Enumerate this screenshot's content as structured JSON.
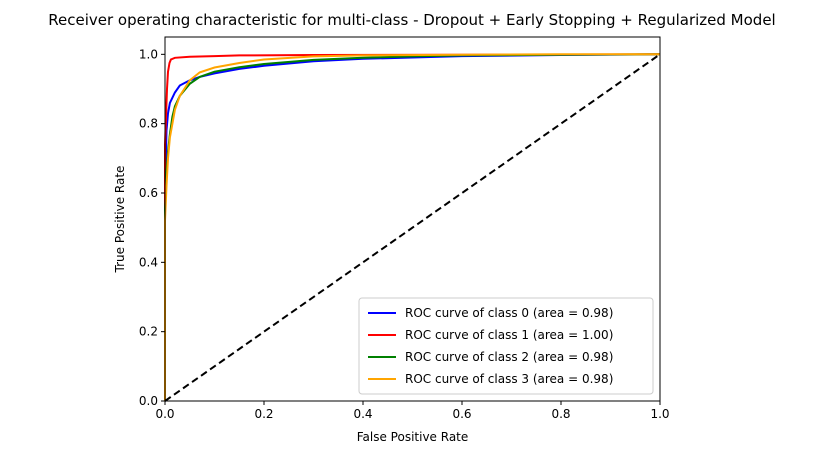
{
  "chart_data": {
    "type": "line",
    "title": "Receiver operating characteristic for multi-class - Dropout + Early Stopping + Regularized Model",
    "xlabel": "False Positive Rate",
    "ylabel": "True Positive Rate",
    "xlim": [
      0.0,
      1.0
    ],
    "ylim": [
      0.0,
      1.05
    ],
    "xticks": [
      "0.0",
      "0.2",
      "0.4",
      "0.6",
      "0.8",
      "1.0"
    ],
    "yticks": [
      "0.0",
      "0.2",
      "0.4",
      "0.6",
      "0.8",
      "1.0"
    ],
    "grid": false,
    "legend_position": "lower-right",
    "series": [
      {
        "name": "ROC curve of class 0 (area = 0.98)",
        "color": "#0000ff",
        "x": [
          0.0,
          0.0,
          0.003,
          0.006,
          0.01,
          0.02,
          0.03,
          0.05,
          0.07,
          0.1,
          0.15,
          0.2,
          0.3,
          0.4,
          0.5,
          0.6,
          0.8,
          1.0
        ],
        "y": [
          0.0,
          0.6,
          0.78,
          0.83,
          0.86,
          0.89,
          0.91,
          0.925,
          0.935,
          0.945,
          0.958,
          0.967,
          0.98,
          0.987,
          0.991,
          0.995,
          0.998,
          1.0
        ]
      },
      {
        "name": "ROC curve of class 1 (area = 1.00)",
        "color": "#ff0000",
        "x": [
          0.0,
          0.0,
          0.002,
          0.004,
          0.006,
          0.009,
          0.012,
          0.02,
          0.05,
          0.1,
          0.15,
          0.3,
          0.6,
          1.0
        ],
        "y": [
          0.0,
          0.74,
          0.82,
          0.9,
          0.95,
          0.975,
          0.985,
          0.99,
          0.993,
          0.995,
          0.997,
          0.998,
          0.999,
          1.0
        ]
      },
      {
        "name": "ROC curve of class 2 (area = 0.98)",
        "color": "#008000",
        "x": [
          0.0,
          0.0,
          0.003,
          0.006,
          0.01,
          0.015,
          0.02,
          0.03,
          0.05,
          0.07,
          0.1,
          0.15,
          0.2,
          0.3,
          0.4,
          0.5,
          0.6,
          0.8,
          1.0
        ],
        "y": [
          0.0,
          0.55,
          0.66,
          0.72,
          0.77,
          0.82,
          0.85,
          0.88,
          0.915,
          0.935,
          0.95,
          0.963,
          0.972,
          0.984,
          0.99,
          0.994,
          0.997,
          0.999,
          1.0
        ]
      },
      {
        "name": "ROC curve of class 3 (area = 0.98)",
        "color": "#ffa500",
        "x": [
          0.0,
          0.0,
          0.003,
          0.006,
          0.01,
          0.015,
          0.02,
          0.03,
          0.05,
          0.07,
          0.1,
          0.15,
          0.2,
          0.3,
          0.4,
          0.6,
          0.8,
          1.0
        ],
        "y": [
          0.0,
          0.52,
          0.62,
          0.7,
          0.76,
          0.8,
          0.84,
          0.88,
          0.925,
          0.948,
          0.962,
          0.975,
          0.985,
          0.994,
          0.997,
          0.999,
          1.0,
          1.0
        ]
      }
    ],
    "reference_line": {
      "x": [
        0.0,
        1.0
      ],
      "y": [
        0.0,
        1.0
      ],
      "color": "#000000",
      "style": "dashed"
    }
  }
}
